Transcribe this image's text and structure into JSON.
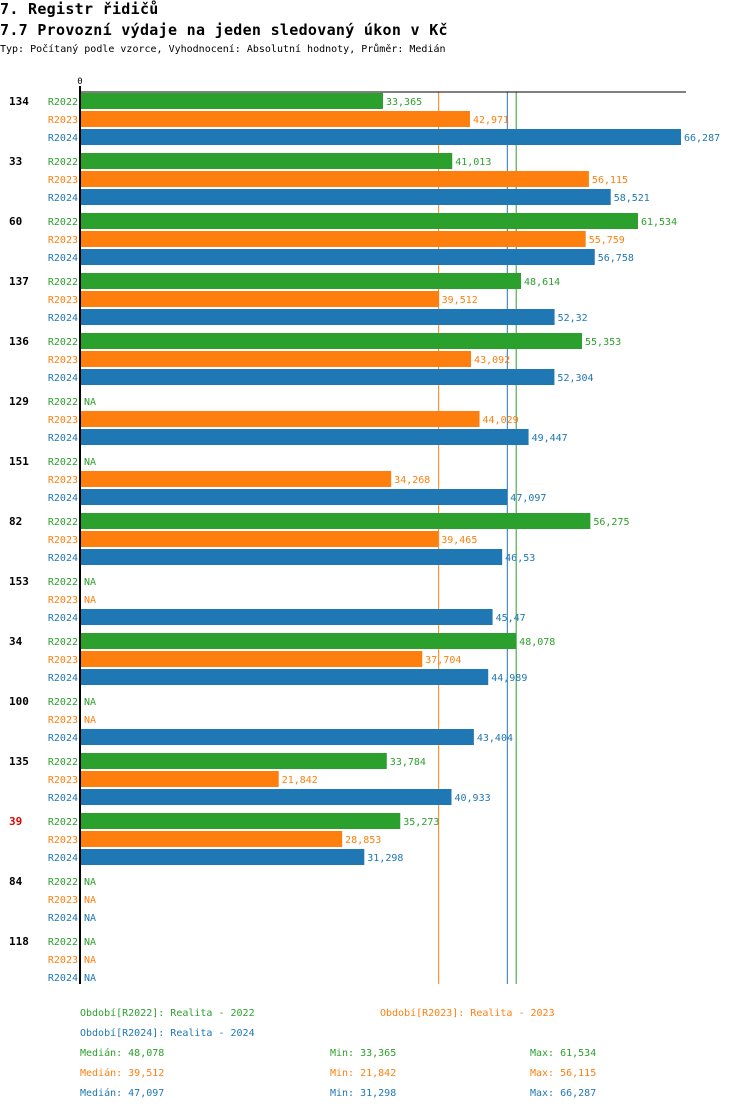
{
  "header": {
    "title": "7. Registr řidičů",
    "subtitle": "7.7 Provozní výdaje na jeden sledovaný úkon v Kč",
    "info": "Typ: Počítaný podle vzorce, Vyhodnocení: Absolutní hodnoty, Průměr: Medián"
  },
  "colors": {
    "R2022": "#2ca02c",
    "R2023": "#ff7f0e",
    "R2024": "#1f77b4",
    "highlight": "#e00000",
    "axis": "#000000"
  },
  "chart_data": {
    "type": "bar",
    "orientation": "horizontal",
    "title": "7.7 Provozní výdaje na jeden sledovaný úkon v Kč",
    "xlabel": "",
    "ylabel": "",
    "x_tick_labels": [
      "0"
    ],
    "xlim": [
      0,
      66287
    ],
    "grid": false,
    "series_names": [
      "R2022",
      "R2023",
      "R2024"
    ],
    "categories": [
      {
        "id": "134",
        "highlight": false,
        "values": {
          "R2022": "33,365",
          "R2023": "42,971",
          "R2024": "66,287"
        }
      },
      {
        "id": "33",
        "highlight": false,
        "values": {
          "R2022": "41,013",
          "R2023": "56,115",
          "R2024": "58,521"
        }
      },
      {
        "id": "60",
        "highlight": false,
        "values": {
          "R2022": "61,534",
          "R2023": "55,759",
          "R2024": "56,758"
        }
      },
      {
        "id": "137",
        "highlight": false,
        "values": {
          "R2022": "48,614",
          "R2023": "39,512",
          "R2024": "52,32"
        }
      },
      {
        "id": "136",
        "highlight": false,
        "values": {
          "R2022": "55,353",
          "R2023": "43,092",
          "R2024": "52,304"
        }
      },
      {
        "id": "129",
        "highlight": false,
        "values": {
          "R2022": "NA",
          "R2023": "44,029",
          "R2024": "49,447"
        }
      },
      {
        "id": "151",
        "highlight": false,
        "values": {
          "R2022": "NA",
          "R2023": "34,268",
          "R2024": "47,097"
        }
      },
      {
        "id": "82",
        "highlight": false,
        "values": {
          "R2022": "56,275",
          "R2023": "39,465",
          "R2024": "46,53"
        }
      },
      {
        "id": "153",
        "highlight": false,
        "values": {
          "R2022": "NA",
          "R2023": "NA",
          "R2024": "45,47"
        }
      },
      {
        "id": "34",
        "highlight": false,
        "values": {
          "R2022": "48,078",
          "R2023": "37,704",
          "R2024": "44,989"
        }
      },
      {
        "id": "100",
        "highlight": false,
        "values": {
          "R2022": "NA",
          "R2023": "NA",
          "R2024": "43,404"
        }
      },
      {
        "id": "135",
        "highlight": false,
        "values": {
          "R2022": "33,784",
          "R2023": "21,842",
          "R2024": "40,933"
        }
      },
      {
        "id": "39",
        "highlight": true,
        "values": {
          "R2022": "35,273",
          "R2023": "28,853",
          "R2024": "31,298"
        }
      },
      {
        "id": "84",
        "highlight": false,
        "values": {
          "R2022": "NA",
          "R2023": "NA",
          "R2024": "NA"
        }
      },
      {
        "id": "118",
        "highlight": false,
        "values": {
          "R2022": "NA",
          "R2023": "NA",
          "R2024": "NA"
        }
      }
    ],
    "median_lines": {
      "R2022": 48.078,
      "R2023": 39.512,
      "R2024": 47.097
    },
    "legend": {
      "periods": [
        {
          "series": "R2022",
          "label": "Období[R2022]: Realita - 2022"
        },
        {
          "series": "R2023",
          "label": "Období[R2023]: Realita - 2023"
        },
        {
          "series": "R2024",
          "label": "Období[R2024]: Realita - 2024"
        }
      ],
      "stats": [
        {
          "series": "R2022",
          "median": "Medián: 48,078",
          "min": "Min: 33,365",
          "max": "Max: 61,534"
        },
        {
          "series": "R2023",
          "median": "Medián: 39,512",
          "min": "Min: 21,842",
          "max": "Max: 56,115"
        },
        {
          "series": "R2024",
          "median": "Medián: 47,097",
          "min": "Min: 31,298",
          "max": "Max: 66,287"
        }
      ],
      "placement": "bottom"
    }
  }
}
